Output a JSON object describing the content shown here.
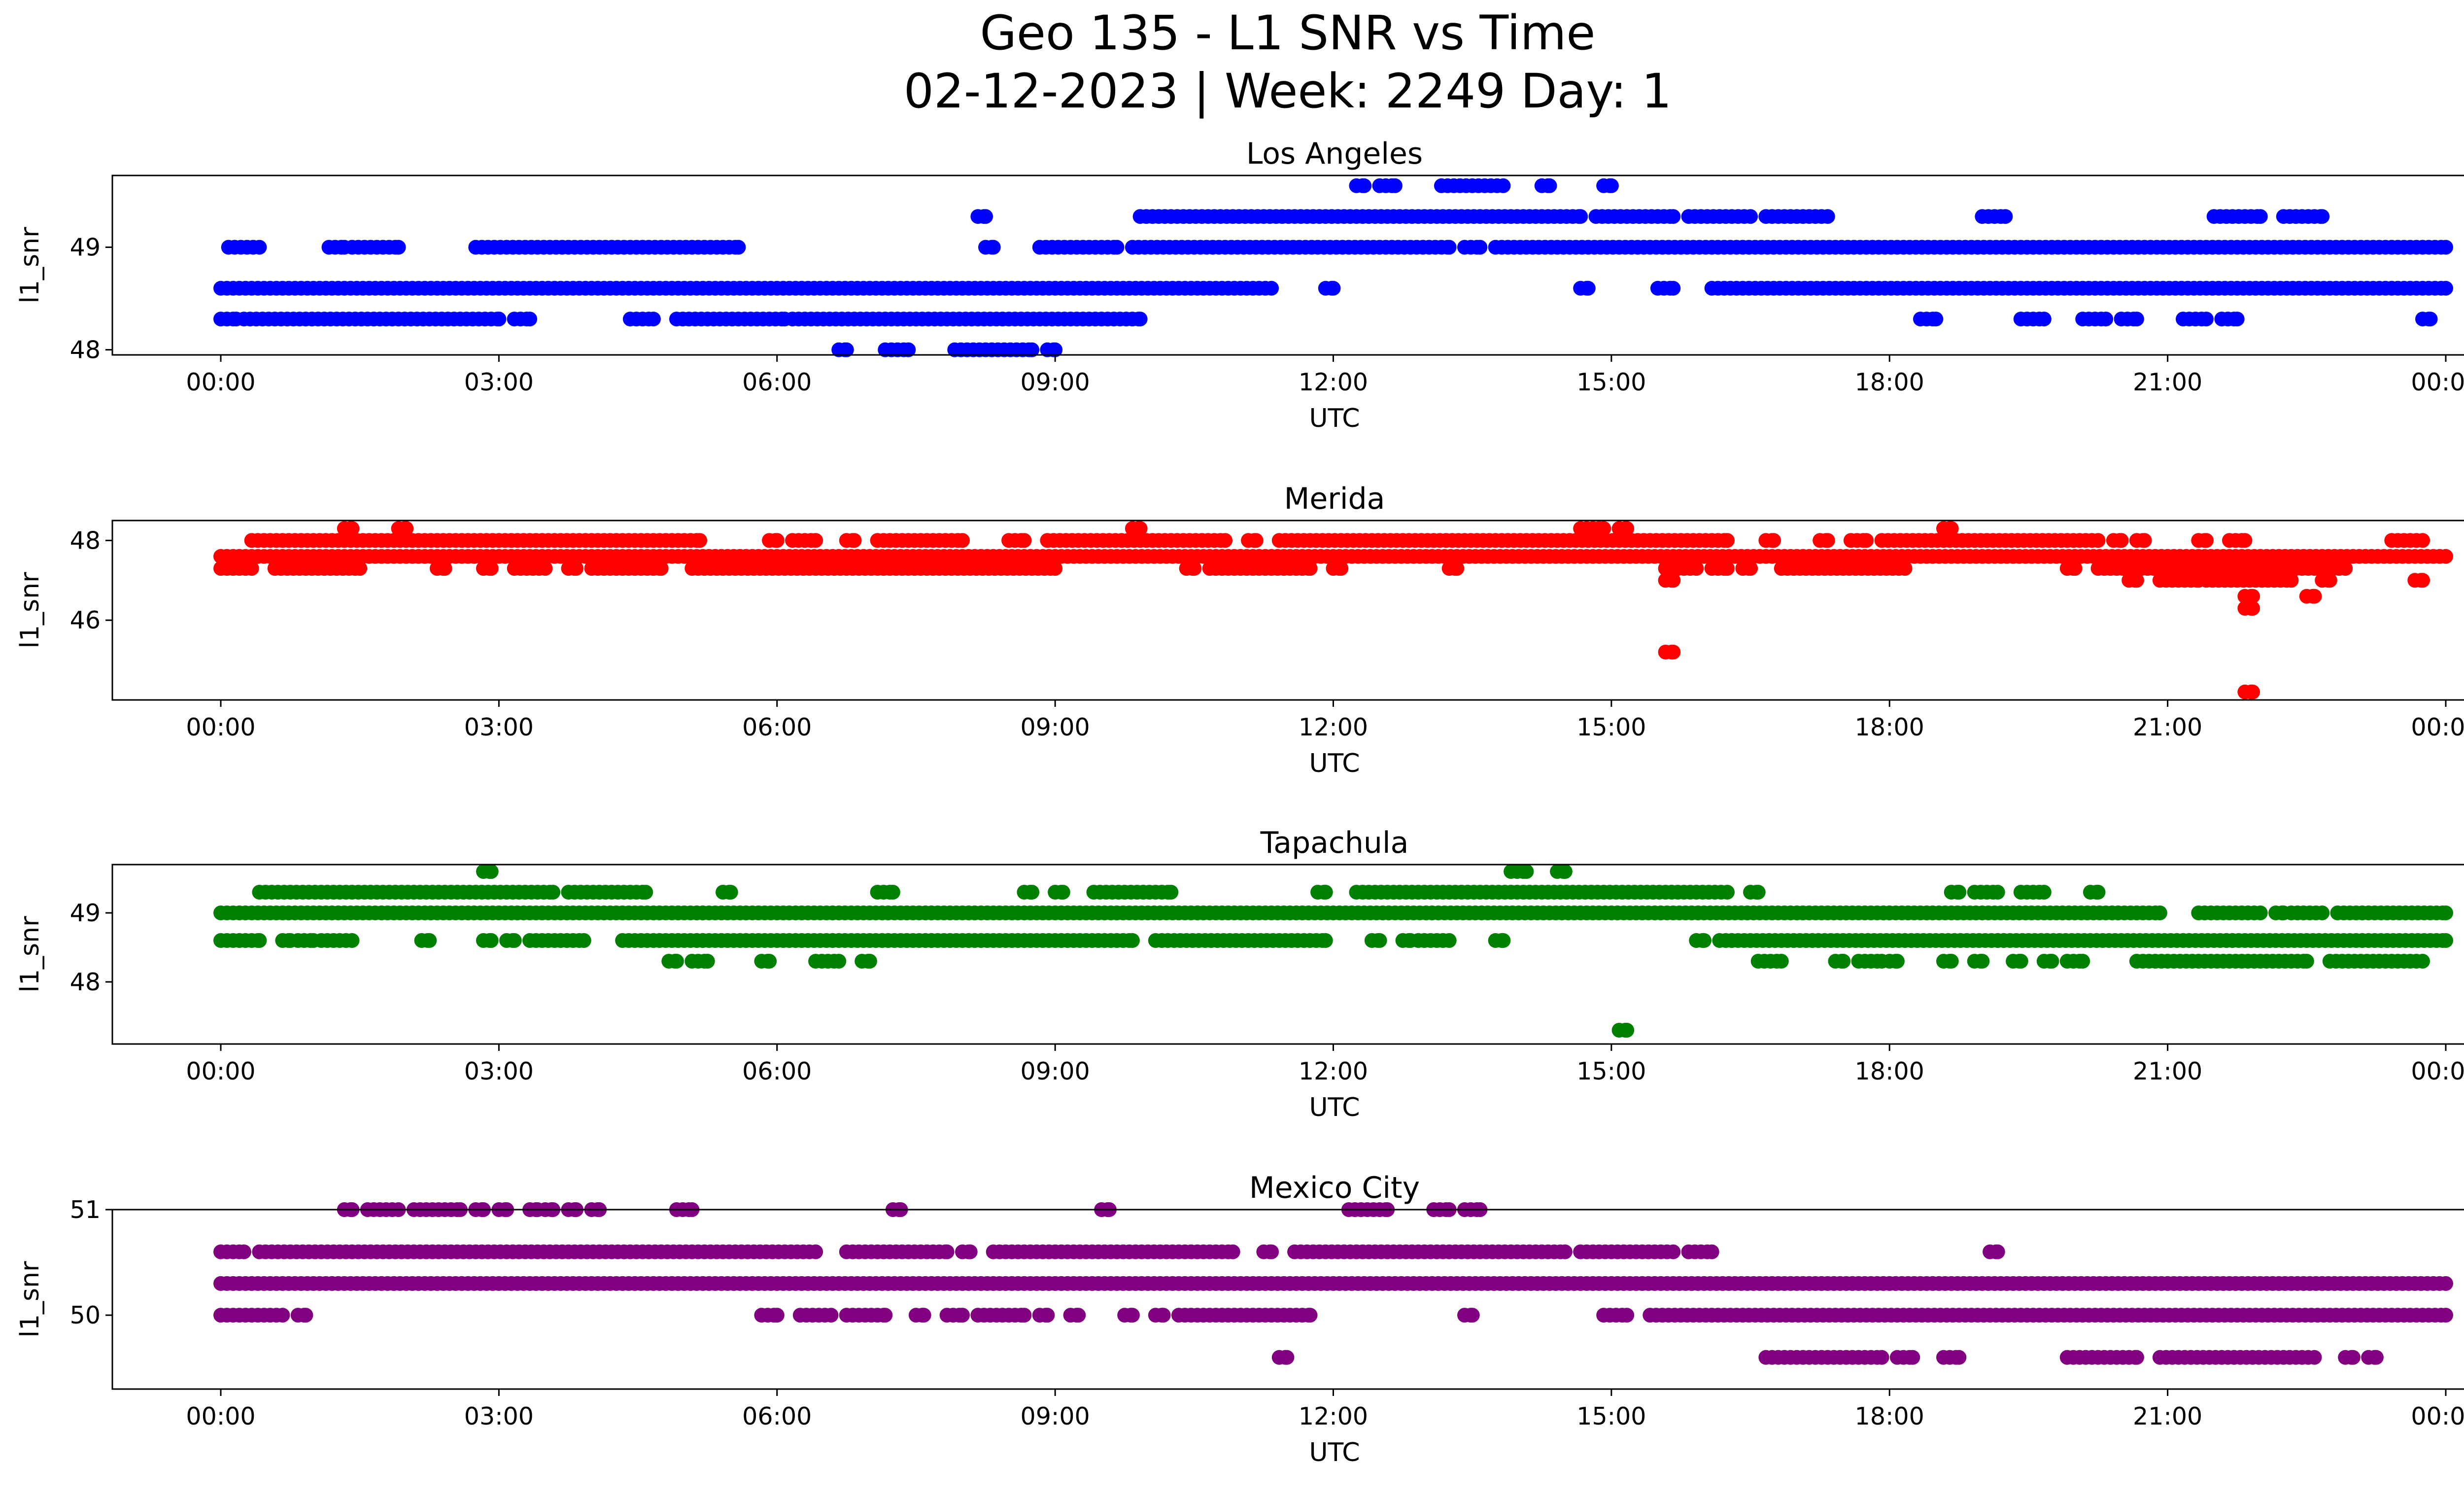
{
  "figure": {
    "title_line1": "Geo 135 - L1 SNR vs Time",
    "title_line2": "02-12-2023 | Week: 2249 Day: 1"
  },
  "chart_data": [
    {
      "type": "scatter",
      "title": "Los Angeles",
      "xlabel": "UTC",
      "ylabel": "l1_snr",
      "color": "#0000ff",
      "xlim": [
        "23:05",
        "23:59+1:29"
      ],
      "x_ticks": [
        "00:00",
        "03:00",
        "06:00",
        "09:00",
        "12:00",
        "15:00",
        "18:00",
        "21:00",
        "00:00"
      ],
      "y_ticks": [
        48,
        49
      ],
      "ylim": [
        47.95,
        49.7
      ],
      "levels": [
        {
          "y": 49.6,
          "intervals": [
            [
              "12:15",
              "12:20"
            ],
            [
              "12:30",
              "12:40"
            ],
            [
              "13:10",
              "13:50"
            ],
            [
              "14:15",
              "14:20"
            ],
            [
              "14:55",
              "15:00"
            ]
          ]
        },
        {
          "y": 49.3,
          "intervals": [
            [
              "08:10",
              "08:15"
            ],
            [
              "09:55",
              "14:40"
            ],
            [
              "14:50",
              "15:40"
            ],
            [
              "15:50",
              "16:30"
            ],
            [
              "16:40",
              "17:20"
            ],
            [
              "19:00",
              "19:15"
            ],
            [
              "21:30",
              "22:00"
            ],
            [
              "22:15",
              "22:40"
            ]
          ]
        },
        {
          "y": 49.0,
          "intervals": [
            [
              "00:05",
              "00:25"
            ],
            [
              "01:10",
              "01:20"
            ],
            [
              "01:25",
              "01:55"
            ],
            [
              "02:45",
              "05:35"
            ],
            [
              "08:15",
              "08:20"
            ],
            [
              "08:50",
              "09:40"
            ],
            [
              "09:50",
              "13:15"
            ],
            [
              "13:25",
              "13:35"
            ],
            [
              "13:45",
              "24:00"
            ]
          ]
        },
        {
          "y": 48.6,
          "intervals": [
            [
              "00:00",
              "11:20"
            ],
            [
              "11:55",
              "12:00"
            ],
            [
              "14:40",
              "14:45"
            ],
            [
              "15:30",
              "15:40"
            ],
            [
              "16:05",
              "24:00"
            ]
          ]
        },
        {
          "y": 48.3,
          "intervals": [
            [
              "00:00",
              "00:10"
            ],
            [
              "00:15",
              "03:00"
            ],
            [
              "03:10",
              "03:20"
            ],
            [
              "04:25",
              "04:40"
            ],
            [
              "04:55",
              "06:05"
            ],
            [
              "06:10",
              "09:55"
            ],
            [
              "18:20",
              "18:30"
            ],
            [
              "19:25",
              "19:40"
            ],
            [
              "20:05",
              "20:20"
            ],
            [
              "20:30",
              "20:40"
            ],
            [
              "21:10",
              "21:25"
            ],
            [
              "21:35",
              "21:45"
            ],
            [
              "23:45",
              "23:50"
            ]
          ]
        },
        {
          "y": 48.0,
          "intervals": [
            [
              "06:40",
              "06:45"
            ],
            [
              "07:10",
              "07:25"
            ],
            [
              "07:55",
              "08:45"
            ],
            [
              "08:55",
              "09:00"
            ]
          ]
        }
      ]
    },
    {
      "type": "scatter",
      "title": "Merida",
      "xlabel": "UTC",
      "ylabel": "l1_snr",
      "color": "#ff0000",
      "x_ticks": [
        "00:00",
        "03:00",
        "06:00",
        "09:00",
        "12:00",
        "15:00",
        "18:00",
        "21:00",
        "00:00"
      ],
      "y_ticks": [
        46,
        48
      ],
      "ylim": [
        44.0,
        48.5
      ],
      "levels": [
        {
          "y": 48.3,
          "intervals": [
            [
              "01:20",
              "01:25"
            ],
            [
              "01:55",
              "02:00"
            ],
            [
              "09:50",
              "09:55"
            ],
            [
              "14:40",
              "14:55"
            ],
            [
              "15:05",
              "15:10"
            ],
            [
              "18:35",
              "18:40"
            ]
          ]
        },
        {
          "y": 48.0,
          "intervals": [
            [
              "00:20",
              "05:10"
            ],
            [
              "05:55",
              "06:00"
            ],
            [
              "06:10",
              "06:25"
            ],
            [
              "06:45",
              "06:50"
            ],
            [
              "07:05",
              "08:00"
            ],
            [
              "08:30",
              "08:40"
            ],
            [
              "08:55",
              "10:50"
            ],
            [
              "11:05",
              "11:10"
            ],
            [
              "11:25",
              "16:15"
            ],
            [
              "16:40",
              "16:45"
            ],
            [
              "17:15",
              "17:20"
            ],
            [
              "17:35",
              "17:45"
            ],
            [
              "17:55",
              "20:15"
            ],
            [
              "20:25",
              "20:30"
            ],
            [
              "20:40",
              "20:45"
            ],
            [
              "21:20",
              "21:25"
            ],
            [
              "21:40",
              "21:50"
            ],
            [
              "23:25",
              "23:45"
            ]
          ]
        },
        {
          "y": 47.6,
          "intervals": [
            [
              "00:00",
              "24:00"
            ]
          ]
        },
        {
          "y": 47.3,
          "intervals": [
            [
              "00:00",
              "00:20"
            ],
            [
              "00:35",
              "01:30"
            ],
            [
              "02:20",
              "02:25"
            ],
            [
              "02:50",
              "02:55"
            ],
            [
              "03:10",
              "03:30"
            ],
            [
              "03:45",
              "03:50"
            ],
            [
              "04:00",
              "04:45"
            ],
            [
              "05:05",
              "09:00"
            ],
            [
              "10:25",
              "10:30"
            ],
            [
              "10:40",
              "11:45"
            ],
            [
              "12:00",
              "12:05"
            ],
            [
              "13:15",
              "13:20"
            ],
            [
              "15:35",
              "15:55"
            ],
            [
              "16:05",
              "16:15"
            ],
            [
              "16:25",
              "16:30"
            ],
            [
              "16:50",
              "18:10"
            ],
            [
              "19:55",
              "20:00"
            ],
            [
              "20:15",
              "22:55"
            ]
          ]
        },
        {
          "y": 47.0,
          "intervals": [
            [
              "15:35",
              "15:40"
            ],
            [
              "20:35",
              "20:40"
            ],
            [
              "20:55",
              "21:20"
            ],
            [
              "21:25",
              "22:20"
            ],
            [
              "22:40",
              "22:45"
            ],
            [
              "23:40",
              "23:45"
            ]
          ]
        },
        {
          "y": 46.6,
          "intervals": [
            [
              "21:50",
              "21:55"
            ],
            [
              "22:30",
              "22:35"
            ]
          ]
        },
        {
          "y": 46.3,
          "intervals": [
            [
              "21:50",
              "21:55"
            ]
          ]
        },
        {
          "y": 45.2,
          "intervals": [
            [
              "15:35",
              "15:40"
            ]
          ]
        },
        {
          "y": 44.2,
          "intervals": [
            [
              "21:50",
              "21:55"
            ]
          ]
        }
      ]
    },
    {
      "type": "scatter",
      "title": "Tapachula",
      "xlabel": "UTC",
      "ylabel": "l1_snr",
      "color": "#008000",
      "x_ticks": [
        "00:00",
        "03:00",
        "06:00",
        "09:00",
        "12:00",
        "15:00",
        "18:00",
        "21:00",
        "00:00"
      ],
      "y_ticks": [
        48,
        49
      ],
      "ylim": [
        47.1,
        49.7
      ],
      "levels": [
        {
          "y": 49.6,
          "intervals": [
            [
              "02:50",
              "02:55"
            ],
            [
              "13:55",
              "14:05"
            ],
            [
              "14:25",
              "14:30"
            ]
          ]
        },
        {
          "y": 49.3,
          "intervals": [
            [
              "00:25",
              "03:35"
            ],
            [
              "03:45",
              "04:35"
            ],
            [
              "05:25",
              "05:30"
            ],
            [
              "07:05",
              "07:15"
            ],
            [
              "08:40",
              "08:45"
            ],
            [
              "09:00",
              "09:05"
            ],
            [
              "09:25",
              "10:15"
            ],
            [
              "11:50",
              "11:55"
            ],
            [
              "12:15",
              "16:15"
            ],
            [
              "16:30",
              "16:35"
            ],
            [
              "18:40",
              "18:45"
            ],
            [
              "18:55",
              "19:10"
            ],
            [
              "19:25",
              "19:40"
            ],
            [
              "20:10",
              "20:15"
            ]
          ]
        },
        {
          "y": 49.0,
          "intervals": [
            [
              "00:00",
              "20:55"
            ],
            [
              "21:20",
              "22:00"
            ],
            [
              "22:10",
              "22:15"
            ],
            [
              "22:20",
              "22:40"
            ],
            [
              "22:50",
              "24:00"
            ]
          ]
        },
        {
          "y": 48.6,
          "intervals": [
            [
              "00:00",
              "00:25"
            ],
            [
              "00:40",
              "00:45"
            ],
            [
              "00:50",
              "01:00"
            ],
            [
              "01:05",
              "01:25"
            ],
            [
              "02:10",
              "02:15"
            ],
            [
              "02:50",
              "02:55"
            ],
            [
              "03:05",
              "03:10"
            ],
            [
              "03:20",
              "03:55"
            ],
            [
              "04:20",
              "09:50"
            ],
            [
              "10:05",
              "11:55"
            ],
            [
              "12:25",
              "12:30"
            ],
            [
              "12:45",
              "12:50"
            ],
            [
              "12:55",
              "13:15"
            ],
            [
              "13:45",
              "13:50"
            ],
            [
              "15:55",
              "16:00"
            ],
            [
              "16:10",
              "24:00"
            ]
          ]
        },
        {
          "y": 48.3,
          "intervals": [
            [
              "04:50",
              "04:55"
            ],
            [
              "05:05",
              "05:15"
            ],
            [
              "05:50",
              "05:55"
            ],
            [
              "06:25",
              "06:40"
            ],
            [
              "06:55",
              "07:00"
            ],
            [
              "16:35",
              "16:50"
            ],
            [
              "17:25",
              "17:30"
            ],
            [
              "17:40",
              "17:55"
            ],
            [
              "18:00",
              "18:05"
            ],
            [
              "18:35",
              "18:40"
            ],
            [
              "18:55",
              "19:00"
            ],
            [
              "19:20",
              "19:25"
            ],
            [
              "19:40",
              "19:45"
            ],
            [
              "19:55",
              "20:05"
            ],
            [
              "20:40",
              "22:30"
            ],
            [
              "22:45",
              "23:45"
            ]
          ]
        },
        {
          "y": 47.3,
          "intervals": [
            [
              "15:05",
              "15:10"
            ]
          ]
        }
      ]
    },
    {
      "type": "scatter",
      "title": "Mexico City",
      "xlabel": "UTC",
      "ylabel": "l1_snr",
      "color": "#800080",
      "x_ticks": [
        "00:00",
        "03:00",
        "06:00",
        "09:00",
        "12:00",
        "15:00",
        "18:00",
        "21:00",
        "00:00"
      ],
      "y_ticks": [
        50,
        51
      ],
      "ylim": [
        49.3,
        51.0
      ],
      "levels": [
        {
          "y": 51.0,
          "intervals": [
            [
              "01:20",
              "01:25"
            ],
            [
              "01:35",
              "01:55"
            ],
            [
              "02:05",
              "02:35"
            ],
            [
              "02:45",
              "02:50"
            ],
            [
              "03:00",
              "03:05"
            ],
            [
              "03:20",
              "03:25"
            ],
            [
              "03:30",
              "03:35"
            ],
            [
              "03:45",
              "03:50"
            ],
            [
              "04:00",
              "04:05"
            ],
            [
              "04:55",
              "05:05"
            ],
            [
              "07:15",
              "07:20"
            ],
            [
              "09:30",
              "09:35"
            ],
            [
              "12:10",
              "12:35"
            ],
            [
              "13:05",
              "13:15"
            ],
            [
              "13:25",
              "13:35"
            ]
          ]
        },
        {
          "y": 50.6,
          "intervals": [
            [
              "00:00",
              "00:15"
            ],
            [
              "00:25",
              "06:25"
            ],
            [
              "06:45",
              "07:50"
            ],
            [
              "08:00",
              "08:05"
            ],
            [
              "08:20",
              "10:55"
            ],
            [
              "11:15",
              "11:20"
            ],
            [
              "11:35",
              "14:30"
            ],
            [
              "14:40",
              "15:40"
            ],
            [
              "15:50",
              "16:05"
            ],
            [
              "19:05",
              "19:10"
            ]
          ]
        },
        {
          "y": 50.3,
          "intervals": [
            [
              "00:00",
              "24:00"
            ]
          ]
        },
        {
          "y": 50.0,
          "intervals": [
            [
              "00:00",
              "00:40"
            ],
            [
              "00:50",
              "00:55"
            ],
            [
              "05:50",
              "06:00"
            ],
            [
              "06:15",
              "06:35"
            ],
            [
              "06:45",
              "07:10"
            ],
            [
              "07:30",
              "07:35"
            ],
            [
              "07:50",
              "08:00"
            ],
            [
              "08:10",
              "08:40"
            ],
            [
              "08:50",
              "08:55"
            ],
            [
              "09:10",
              "09:15"
            ],
            [
              "09:45",
              "09:50"
            ],
            [
              "10:05",
              "10:10"
            ],
            [
              "10:20",
              "11:45"
            ],
            [
              "13:25",
              "13:30"
            ],
            [
              "14:55",
              "15:10"
            ],
            [
              "15:25",
              "24:00"
            ]
          ]
        },
        {
          "y": 49.6,
          "intervals": [
            [
              "11:25",
              "11:30"
            ],
            [
              "16:40",
              "17:55"
            ],
            [
              "18:05",
              "18:15"
            ],
            [
              "18:35",
              "18:45"
            ],
            [
              "19:55",
              "20:40"
            ],
            [
              "20:55",
              "22:35"
            ],
            [
              "22:55",
              "23:00"
            ],
            [
              "23:10",
              "23:15"
            ]
          ]
        }
      ]
    }
  ]
}
